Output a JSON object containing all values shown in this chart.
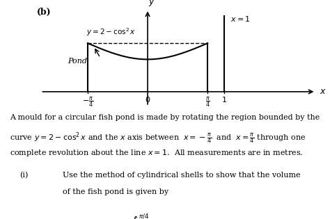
{
  "background_color": "#ffffff",
  "fig_width": 4.74,
  "fig_height": 3.15,
  "dpi": 100,
  "paragraph1": "A mould for a circular fish pond is made by rotating the region bounded by the",
  "paragraph3": "complete revolution about the line $x = 1$.  All measurements are in metres.",
  "part_i_text1": "Use the method of cylindrical shells to show that the volume",
  "part_i_text2": "of the fish pond is given by"
}
